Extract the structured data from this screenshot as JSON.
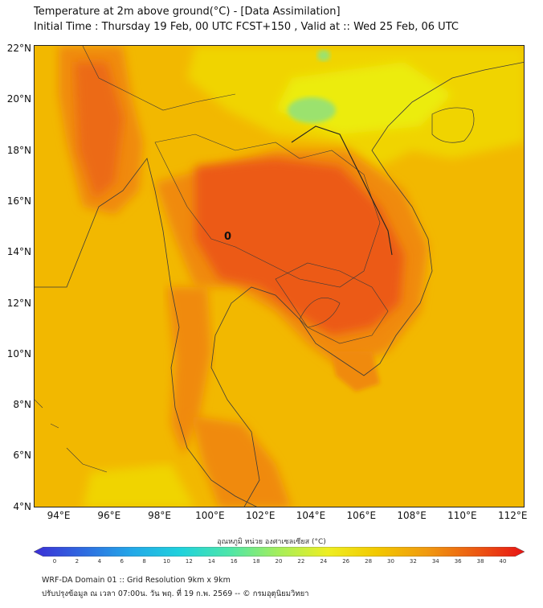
{
  "header": {
    "title_line1": "Temperature at 2m above ground(°C) - [Data Assimilation]",
    "title_line2": "Initial Time : Thursday 19 Feb, 00 UTC FCST+150 , Valid at :: Wed 25 Feb, 06 UTC"
  },
  "map": {
    "lat_labels": [
      "22°N",
      "20°N",
      "18°N",
      "16°N",
      "14°N",
      "12°N",
      "10°N",
      "8°N",
      "6°N",
      "4°N"
    ],
    "lon_labels": [
      "94°E",
      "96°E",
      "98°E",
      "100°E",
      "102°E",
      "104°E",
      "106°E",
      "108°E",
      "110°E",
      "112°E"
    ],
    "marker": "0",
    "colors": {
      "background_field": "#f2b800",
      "warm": "#f08a10",
      "hot": "#ec5a14",
      "cool": "#e8e400",
      "cold": "#8ee27a",
      "border_line": "#3a3a3a"
    }
  },
  "colorbar": {
    "title": "อุณหภูมิ หน่วย องศาเซลเซียส (°C)",
    "ticks": [
      "0",
      "2",
      "4",
      "6",
      "8",
      "10",
      "12",
      "14",
      "16",
      "18",
      "20",
      "22",
      "24",
      "26",
      "28",
      "30",
      "32",
      "34",
      "36",
      "38",
      "40"
    ],
    "min": 0,
    "max": 40,
    "colors": [
      "#3b2fd6",
      "#2f6ae0",
      "#23a8e8",
      "#20d2dc",
      "#4ee6a8",
      "#a6ee5a",
      "#eeee22",
      "#f2c800",
      "#f09a10",
      "#ec5a12",
      "#e81414"
    ]
  },
  "footer": {
    "line1": "WRF-DA Domain 01 :: Grid Resolution 9km x 9km",
    "line2": "ปรับปรุงข้อมูล ณ เวลา 07:00น. วัน พฤ. ที่ 19 ก.พ. 2569 -- © กรมอุตุนิยมวิทยา"
  }
}
